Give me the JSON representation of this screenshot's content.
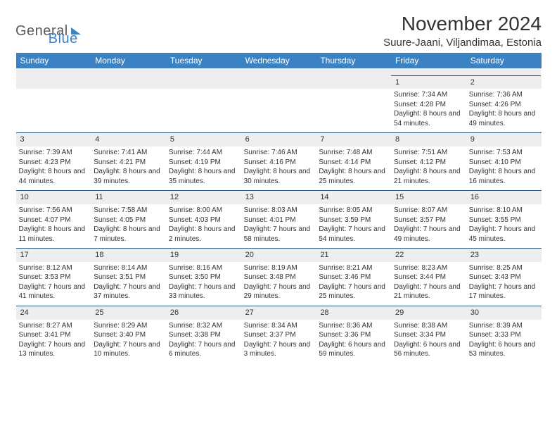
{
  "brand": {
    "part1": "General",
    "part2": "Blue"
  },
  "title": "November 2024",
  "location": "Suure-Jaani, Viljandimaa, Estonia",
  "colors": {
    "header_bg": "#3b82c4",
    "header_fg": "#ffffff",
    "daynum_bg": "#eeeeee",
    "daynum_border": "#2b5a8a",
    "text": "#333333",
    "background": "#ffffff"
  },
  "weekdays": [
    "Sunday",
    "Monday",
    "Tuesday",
    "Wednesday",
    "Thursday",
    "Friday",
    "Saturday"
  ],
  "weeks": [
    [
      null,
      null,
      null,
      null,
      null,
      {
        "n": "1",
        "sr": "7:34 AM",
        "ss": "4:28 PM",
        "dl": "8 hours and 54 minutes."
      },
      {
        "n": "2",
        "sr": "7:36 AM",
        "ss": "4:26 PM",
        "dl": "8 hours and 49 minutes."
      }
    ],
    [
      {
        "n": "3",
        "sr": "7:39 AM",
        "ss": "4:23 PM",
        "dl": "8 hours and 44 minutes."
      },
      {
        "n": "4",
        "sr": "7:41 AM",
        "ss": "4:21 PM",
        "dl": "8 hours and 39 minutes."
      },
      {
        "n": "5",
        "sr": "7:44 AM",
        "ss": "4:19 PM",
        "dl": "8 hours and 35 minutes."
      },
      {
        "n": "6",
        "sr": "7:46 AM",
        "ss": "4:16 PM",
        "dl": "8 hours and 30 minutes."
      },
      {
        "n": "7",
        "sr": "7:48 AM",
        "ss": "4:14 PM",
        "dl": "8 hours and 25 minutes."
      },
      {
        "n": "8",
        "sr": "7:51 AM",
        "ss": "4:12 PM",
        "dl": "8 hours and 21 minutes."
      },
      {
        "n": "9",
        "sr": "7:53 AM",
        "ss": "4:10 PM",
        "dl": "8 hours and 16 minutes."
      }
    ],
    [
      {
        "n": "10",
        "sr": "7:56 AM",
        "ss": "4:07 PM",
        "dl": "8 hours and 11 minutes."
      },
      {
        "n": "11",
        "sr": "7:58 AM",
        "ss": "4:05 PM",
        "dl": "8 hours and 7 minutes."
      },
      {
        "n": "12",
        "sr": "8:00 AM",
        "ss": "4:03 PM",
        "dl": "8 hours and 2 minutes."
      },
      {
        "n": "13",
        "sr": "8:03 AM",
        "ss": "4:01 PM",
        "dl": "7 hours and 58 minutes."
      },
      {
        "n": "14",
        "sr": "8:05 AM",
        "ss": "3:59 PM",
        "dl": "7 hours and 54 minutes."
      },
      {
        "n": "15",
        "sr": "8:07 AM",
        "ss": "3:57 PM",
        "dl": "7 hours and 49 minutes."
      },
      {
        "n": "16",
        "sr": "8:10 AM",
        "ss": "3:55 PM",
        "dl": "7 hours and 45 minutes."
      }
    ],
    [
      {
        "n": "17",
        "sr": "8:12 AM",
        "ss": "3:53 PM",
        "dl": "7 hours and 41 minutes."
      },
      {
        "n": "18",
        "sr": "8:14 AM",
        "ss": "3:51 PM",
        "dl": "7 hours and 37 minutes."
      },
      {
        "n": "19",
        "sr": "8:16 AM",
        "ss": "3:50 PM",
        "dl": "7 hours and 33 minutes."
      },
      {
        "n": "20",
        "sr": "8:19 AM",
        "ss": "3:48 PM",
        "dl": "7 hours and 29 minutes."
      },
      {
        "n": "21",
        "sr": "8:21 AM",
        "ss": "3:46 PM",
        "dl": "7 hours and 25 minutes."
      },
      {
        "n": "22",
        "sr": "8:23 AM",
        "ss": "3:44 PM",
        "dl": "7 hours and 21 minutes."
      },
      {
        "n": "23",
        "sr": "8:25 AM",
        "ss": "3:43 PM",
        "dl": "7 hours and 17 minutes."
      }
    ],
    [
      {
        "n": "24",
        "sr": "8:27 AM",
        "ss": "3:41 PM",
        "dl": "7 hours and 13 minutes."
      },
      {
        "n": "25",
        "sr": "8:29 AM",
        "ss": "3:40 PM",
        "dl": "7 hours and 10 minutes."
      },
      {
        "n": "26",
        "sr": "8:32 AM",
        "ss": "3:38 PM",
        "dl": "7 hours and 6 minutes."
      },
      {
        "n": "27",
        "sr": "8:34 AM",
        "ss": "3:37 PM",
        "dl": "7 hours and 3 minutes."
      },
      {
        "n": "28",
        "sr": "8:36 AM",
        "ss": "3:36 PM",
        "dl": "6 hours and 59 minutes."
      },
      {
        "n": "29",
        "sr": "8:38 AM",
        "ss": "3:34 PM",
        "dl": "6 hours and 56 minutes."
      },
      {
        "n": "30",
        "sr": "8:39 AM",
        "ss": "3:33 PM",
        "dl": "6 hours and 53 minutes."
      }
    ]
  ],
  "labels": {
    "sunrise": "Sunrise:",
    "sunset": "Sunset:",
    "daylight": "Daylight:"
  }
}
